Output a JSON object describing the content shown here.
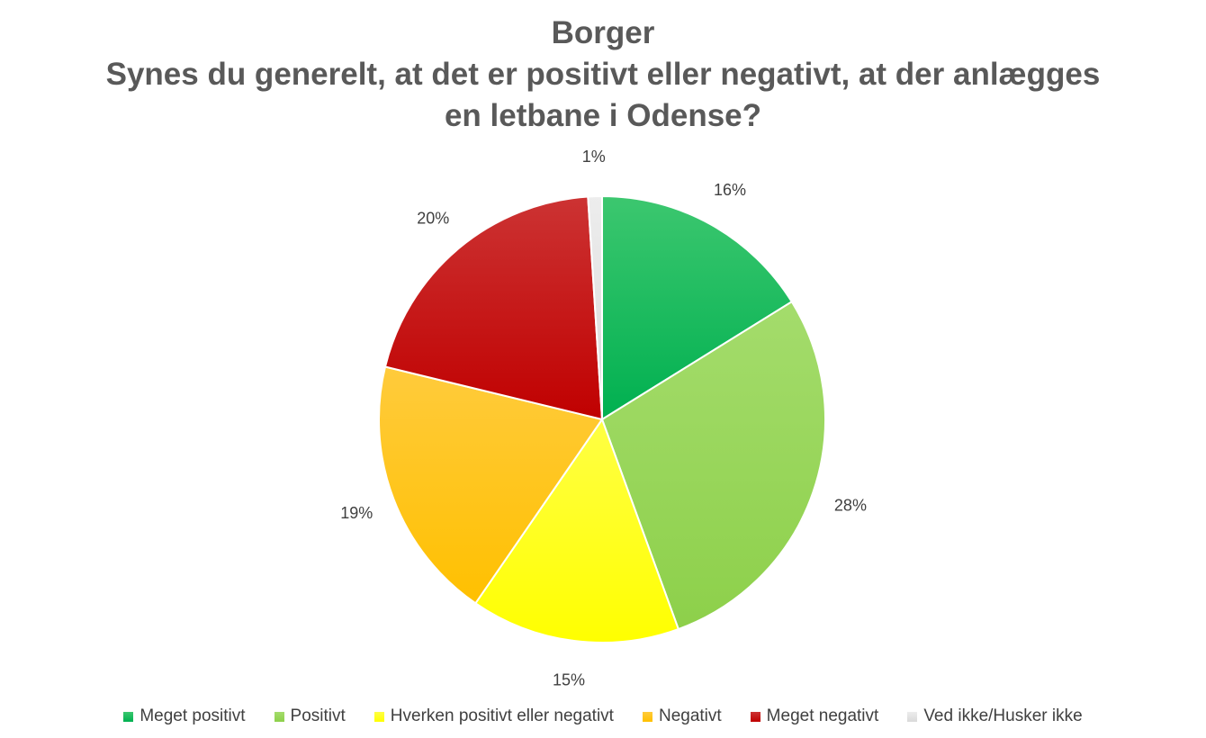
{
  "chart_data": {
    "type": "pie",
    "title_lines": [
      "Borger",
      "Synes du generelt, at det er positivt eller negativt, at der anlægges",
      "en letbane i Odense?"
    ],
    "slices": [
      {
        "label": "Meget positivt",
        "value": 16,
        "display": "16%",
        "color": "#00b050",
        "color_light": "#3cc76f"
      },
      {
        "label": "Positivt",
        "value": 28,
        "display": "28%",
        "color": "#8dd04a",
        "color_light": "#a4dc6c"
      },
      {
        "label": "Hverken positivt eller negativt",
        "value": 15,
        "display": "15%",
        "color": "#ffff00",
        "color_light": "#ffff44"
      },
      {
        "label": "Negativt",
        "value": 19,
        "display": "19%",
        "color": "#ffc000",
        "color_light": "#ffcb3c"
      },
      {
        "label": "Meget negativt",
        "value": 20,
        "display": "20%",
        "color": "#c00000",
        "color_light": "#cc3333"
      },
      {
        "label": "Ved ikke/Husker ikke",
        "value": 1,
        "display": "1%",
        "color": "#d9d9d9",
        "color_light": "#ededed"
      }
    ],
    "legend_position": "bottom",
    "start_angle": "12 o'clock",
    "direction": "clockwise"
  }
}
